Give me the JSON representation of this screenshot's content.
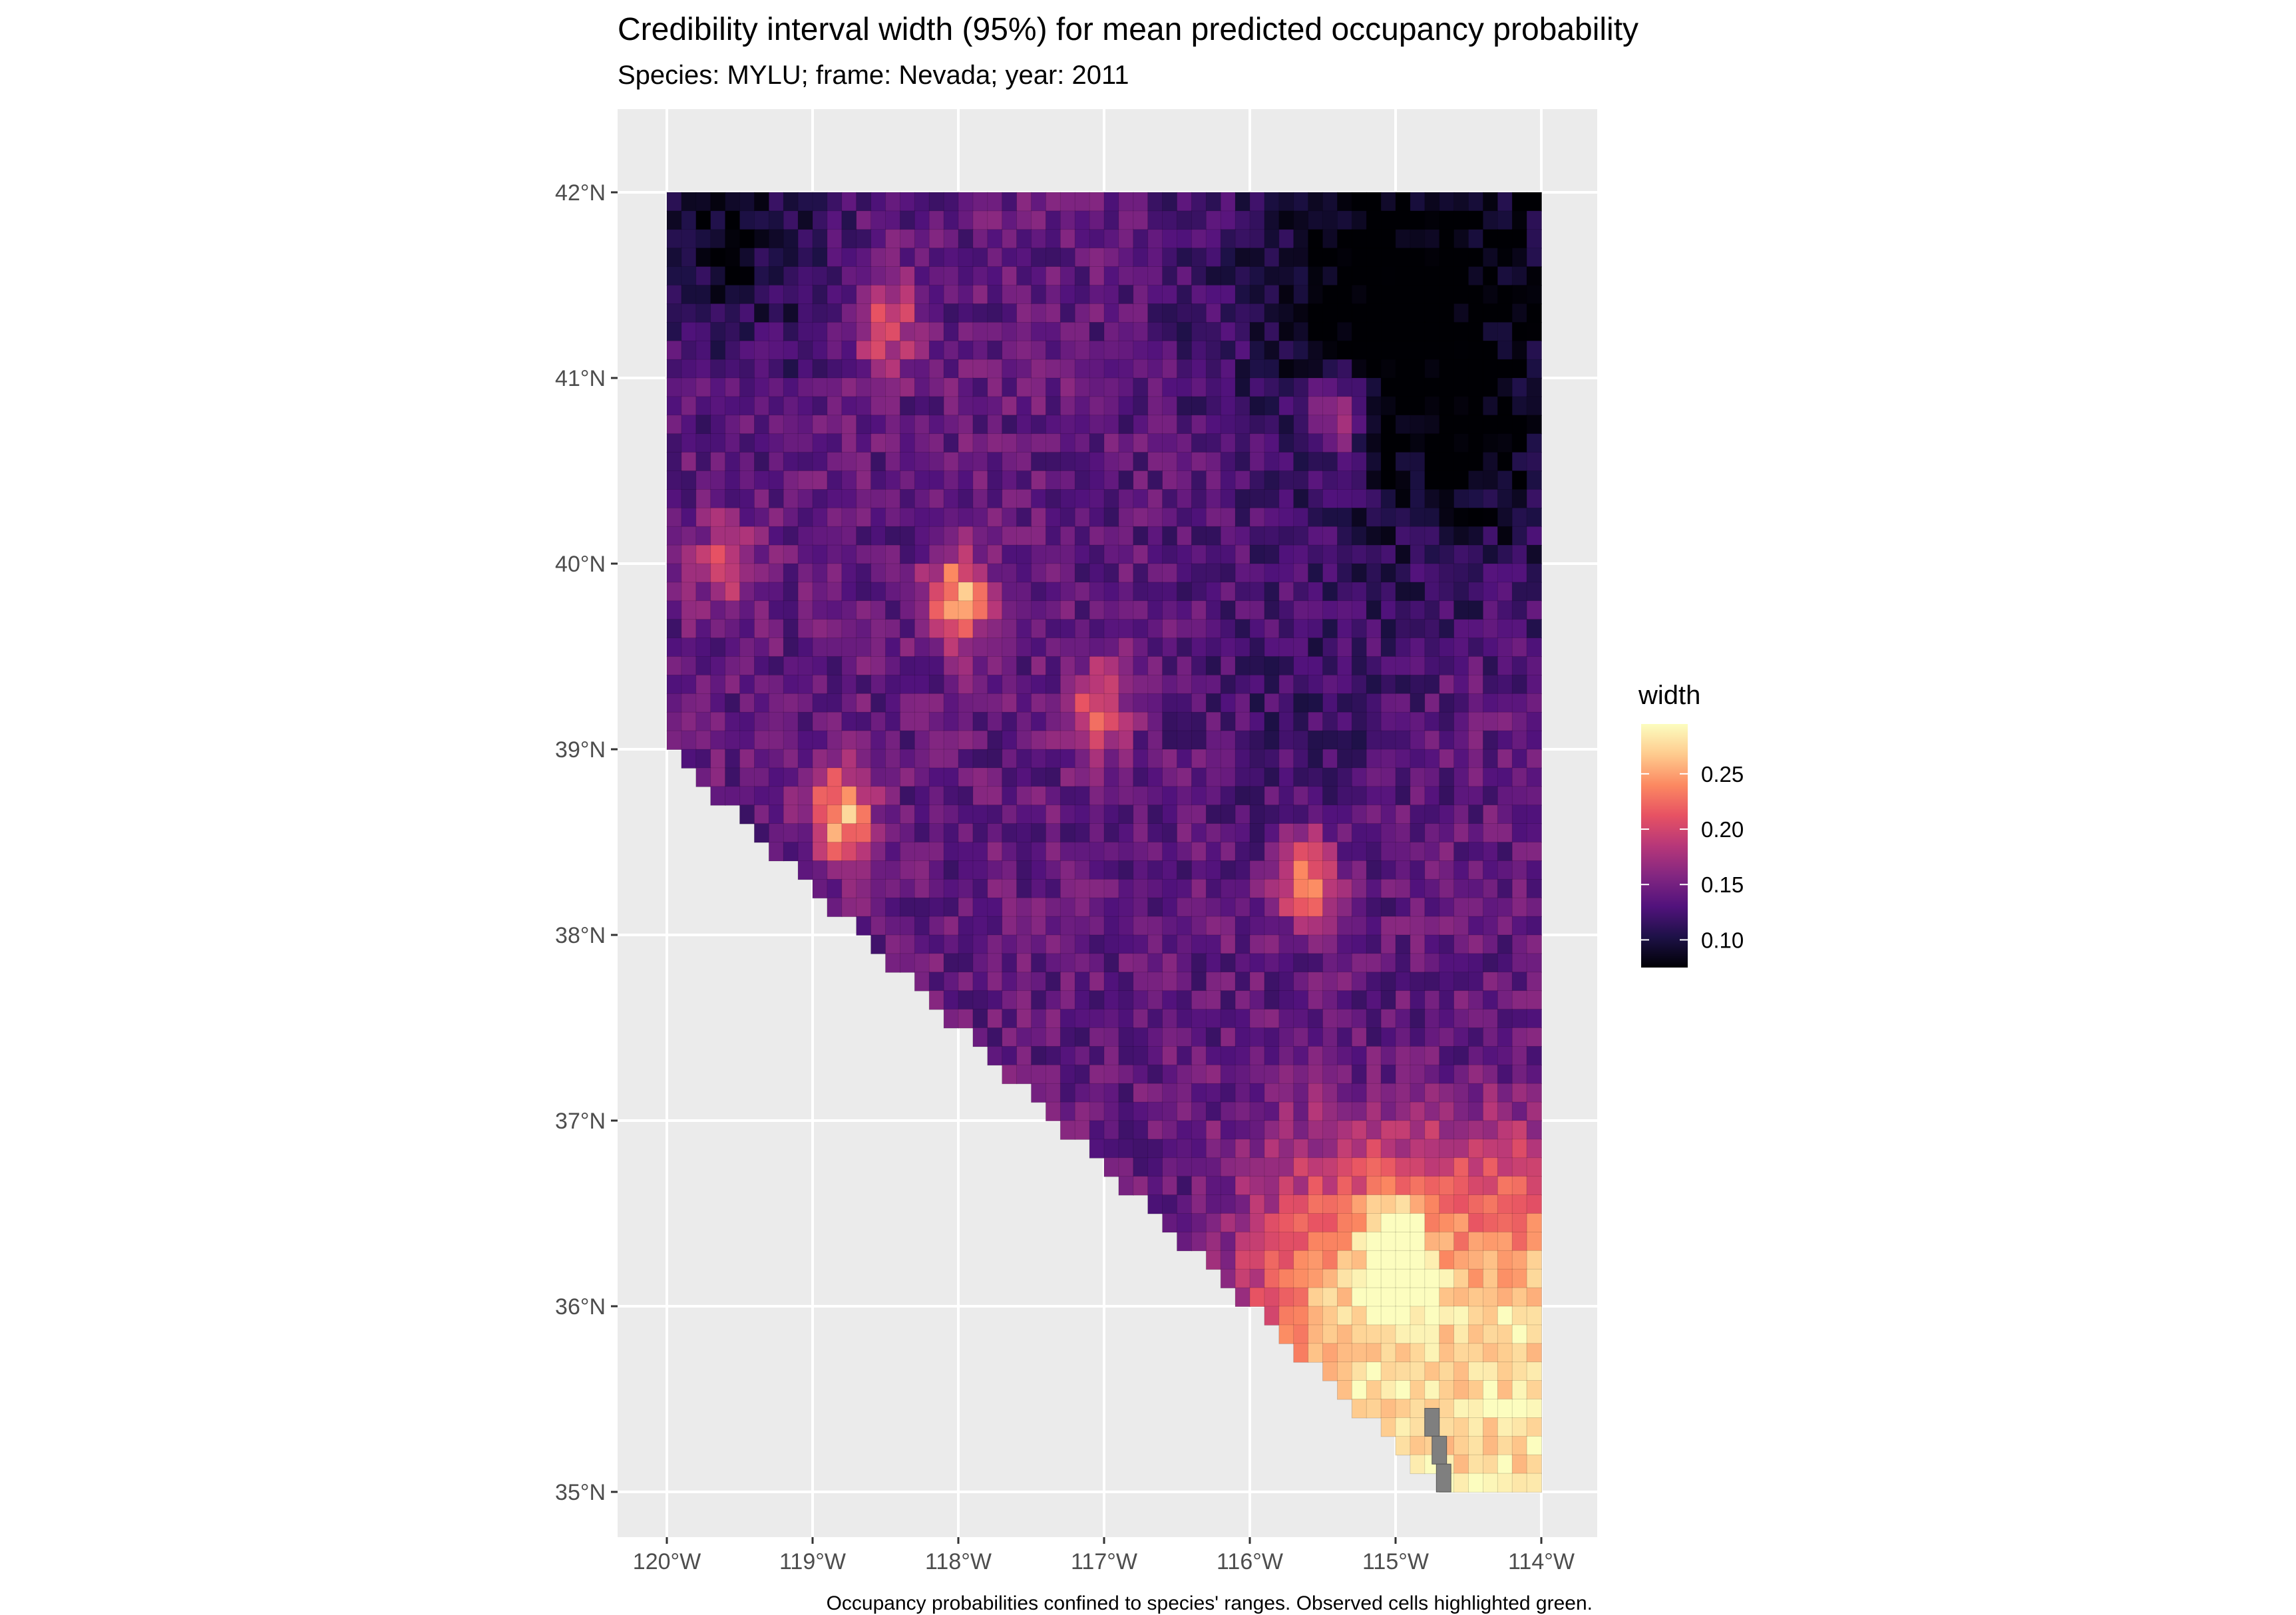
{
  "chart_data": {
    "type": "heatmap",
    "title": "Credibility interval width (95%) for mean predicted occupancy probability",
    "subtitle": "Species: MYLU; frame: Nevada; year: 2011",
    "caption": "Occupancy probabilities confined to species' ranges. Observed cells highlighted green.",
    "x_ticks": [
      {
        "value": -120,
        "label": "120°W"
      },
      {
        "value": -119,
        "label": "119°W"
      },
      {
        "value": -118,
        "label": "118°W"
      },
      {
        "value": -117,
        "label": "117°W"
      },
      {
        "value": -116,
        "label": "116°W"
      },
      {
        "value": -115,
        "label": "115°W"
      },
      {
        "value": -114,
        "label": "114°W"
      }
    ],
    "y_ticks": [
      {
        "value": 42,
        "label": "42°N"
      },
      {
        "value": 41,
        "label": "41°N"
      },
      {
        "value": 40,
        "label": "40°N"
      },
      {
        "value": 39,
        "label": "39°N"
      },
      {
        "value": 38,
        "label": "38°N"
      },
      {
        "value": 37,
        "label": "37°N"
      },
      {
        "value": 36,
        "label": "36°N"
      },
      {
        "value": 35,
        "label": "35°N"
      }
    ],
    "xlim": [
      -120.3,
      -113.6
    ],
    "ylim": [
      34.9,
      42.4
    ],
    "grid": true,
    "panel_background": "#ebebeb",
    "legend": {
      "title": "width",
      "position": "right",
      "range": [
        0.075,
        0.295
      ],
      "ticks": [
        {
          "value": 0.25,
          "label": "0.25"
        },
        {
          "value": 0.2,
          "label": "0.20"
        },
        {
          "value": 0.15,
          "label": "0.15"
        },
        {
          "value": 0.1,
          "label": "0.10"
        }
      ],
      "palette": "magma",
      "colors": [
        "#000004",
        "#1d1147",
        "#51127c",
        "#822681",
        "#b73779",
        "#e75263",
        "#fc8961",
        "#fecb8e",
        "#fcfdbf"
      ]
    },
    "state_outline_lonlat": [
      [
        -120,
        42
      ],
      [
        -114.04,
        42
      ],
      [
        -114.04,
        36.2
      ],
      [
        -114.6,
        35.2
      ],
      [
        -114.65,
        35.0
      ],
      [
        -120,
        39.0
      ]
    ],
    "na_cells_color": "#7f7f7f",
    "hotspots": [
      {
        "lon": -118.0,
        "lat": 39.8,
        "value": 0.26
      },
      {
        "lon": -118.8,
        "lat": 38.65,
        "value": 0.26
      },
      {
        "lon": -117.05,
        "lat": 39.2,
        "value": 0.22
      },
      {
        "lon": -115.6,
        "lat": 38.3,
        "value": 0.24
      },
      {
        "lon": -118.5,
        "lat": 41.3,
        "value": 0.22
      },
      {
        "lon": -115.4,
        "lat": 40.8,
        "value": 0.22
      },
      {
        "lon": -119.6,
        "lat": 40.0,
        "value": 0.2
      },
      {
        "lon": -115.0,
        "lat": 36.3,
        "value": 0.28
      }
    ],
    "coldspots": [
      {
        "lon": -115.2,
        "lat": 41.4,
        "value": 0.085
      },
      {
        "lon": -119.5,
        "lat": 41.7,
        "value": 0.09
      },
      {
        "lon": -114.6,
        "lat": 40.6,
        "value": 0.095
      },
      {
        "lon": -115.6,
        "lat": 39.2,
        "value": 0.11
      }
    ]
  }
}
